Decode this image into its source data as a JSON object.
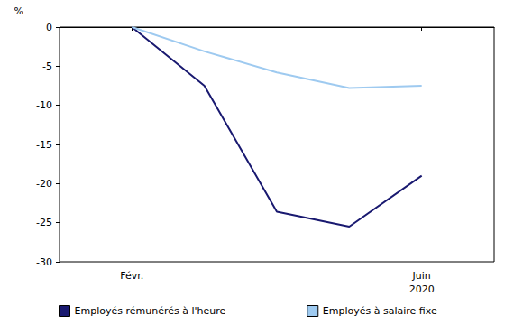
{
  "chart_data": {
    "type": "line",
    "y_label": "%",
    "categories": [
      null,
      "Févr.",
      null,
      null,
      null,
      "Juin\n2020",
      null
    ],
    "series": [
      {
        "name": "Employés rémunérés à l'heure",
        "color": "#191970",
        "values": [
          null,
          0,
          -7.5,
          -23.6,
          -25.5,
          -19.0,
          null
        ]
      },
      {
        "name": "Employés à salaire fixe",
        "color": "#9ecaf0",
        "values": [
          null,
          0,
          -3.1,
          -5.8,
          -7.8,
          -7.5,
          null
        ]
      }
    ],
    "ylim": [
      -30,
      0
    ],
    "yticks": [
      -30,
      -25,
      -20,
      -15,
      -10,
      -5,
      0
    ],
    "grid": false,
    "legend": "bottom"
  }
}
